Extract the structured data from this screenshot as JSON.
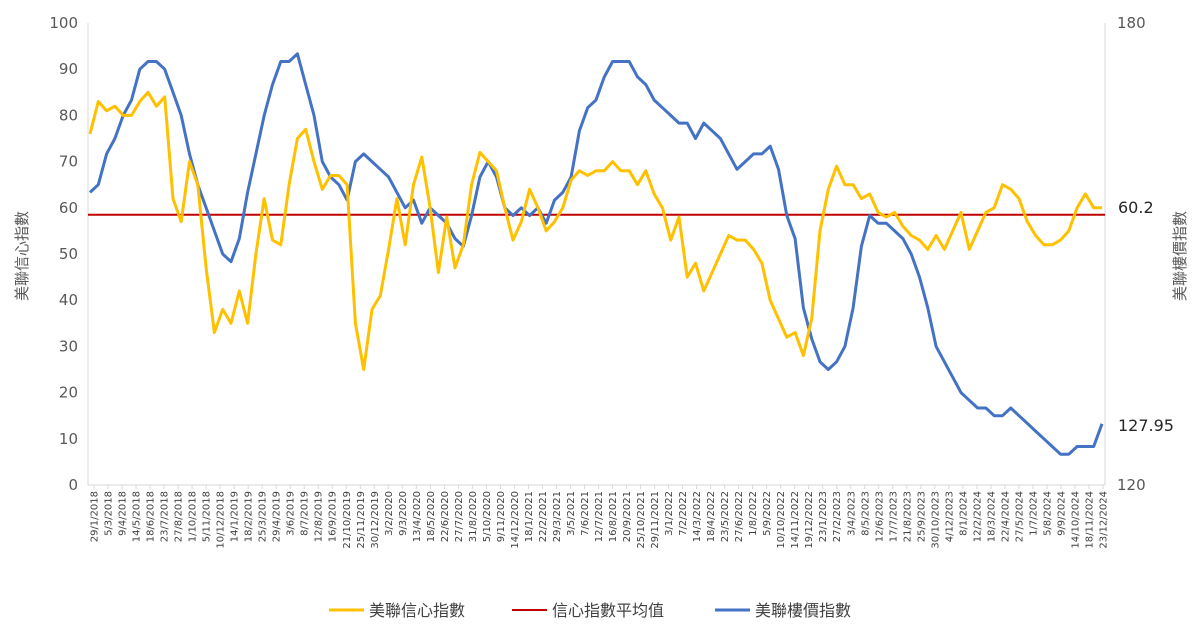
{
  "chart_data": {
    "type": "line",
    "y_left_label": "美聯信心指數",
    "y_right_label": "美聯樓價指數",
    "y_left_range": [
      0,
      100
    ],
    "y_left_ticks": [
      "0",
      "10",
      "20",
      "30",
      "40",
      "50",
      "60",
      "70",
      "80",
      "90",
      "100"
    ],
    "y_right_range": [
      120,
      180
    ],
    "y_right_ticks": [
      "120",
      "180"
    ],
    "x_tick_labels": [
      "29/1/2018",
      "5/3/2018",
      "9/4/2018",
      "14/5/2018",
      "18/6/2018",
      "23/7/2018",
      "27/8/2018",
      "1/10/2018",
      "5/11/2018",
      "10/12/2018",
      "14/1/2019",
      "18/2/2019",
      "25/3/2019",
      "29/4/2019",
      "3/6/2019",
      "8/7/2019",
      "12/8/2019",
      "16/9/2019",
      "21/10/2019",
      "25/11/2019",
      "30/12/2019",
      "3/2/2020",
      "9/3/2020",
      "13/4/2020",
      "18/5/2020",
      "22/6/2020",
      "27/7/2020",
      "31/8/2020",
      "5/10/2020",
      "9/11/2020",
      "14/12/2020",
      "18/1/2021",
      "22/2/2021",
      "29/3/2021",
      "3/5/2021",
      "7/6/2021",
      "12/7/2021",
      "16/8/2021",
      "20/9/2021",
      "25/10/2021",
      "29/11/2021",
      "3/1/2022",
      "7/2/2022",
      "14/3/2022",
      "18/4/2022",
      "23/5/2022",
      "27/6/2022",
      "1/8/2022",
      "5/9/2022",
      "10/10/2022",
      "14/11/2022",
      "19/12/2022",
      "23/1/2023",
      "27/2/2023",
      "3/4/2023",
      "8/5/2023",
      "12/6/2023",
      "17/7/2023",
      "21/8/2023",
      "25/9/2023",
      "30/10/2023",
      "4/12/2023",
      "8/1/2024",
      "12/2/2024",
      "18/3/2024",
      "22/4/2024",
      "27/5/2024",
      "1/7/2024",
      "5/8/2024",
      "9/9/2024",
      "14/10/2024",
      "18/11/2024",
      "23/12/2024"
    ],
    "average_value": 58.5,
    "series": [
      {
        "name": "美聯信心指數",
        "axis": "left",
        "color": "#FFC000",
        "values": [
          76,
          83,
          81,
          82,
          80,
          80,
          83,
          85,
          82,
          84,
          62,
          57,
          70,
          65,
          47,
          33,
          38,
          35,
          42,
          35,
          50,
          62,
          53,
          52,
          65,
          75,
          77,
          70,
          64,
          67,
          67,
          65,
          35,
          25,
          38,
          41,
          51,
          62,
          52,
          65,
          71,
          60,
          46,
          58,
          47,
          52,
          65,
          72,
          70,
          68,
          60,
          53,
          57,
          64,
          60,
          55,
          57,
          60,
          66,
          68,
          67,
          68,
          68,
          70,
          68,
          68,
          65,
          68,
          63,
          60,
          53,
          58,
          45,
          48,
          42,
          46,
          50,
          54,
          53,
          53,
          51,
          48,
          40,
          36,
          32,
          33,
          28,
          36,
          55,
          64,
          69,
          65,
          65,
          62,
          63,
          59,
          58,
          59,
          56,
          54,
          53,
          51,
          54,
          51,
          55,
          59,
          51,
          55,
          59,
          60,
          65,
          64,
          62,
          57,
          54,
          52,
          52,
          53,
          55,
          60,
          63,
          60,
          60
        ]
      },
      {
        "name": "美聯樓價指數",
        "axis": "right",
        "color": "#4472C4",
        "values": [
          158,
          159,
          163,
          165,
          168,
          170,
          174,
          175,
          175,
          174,
          171,
          168,
          163,
          159,
          156,
          153,
          150,
          149,
          152,
          158,
          163,
          168,
          172,
          175,
          175,
          176,
          172,
          168,
          162,
          160,
          159,
          157,
          162,
          163,
          162,
          161,
          160,
          158,
          156,
          157,
          154,
          156,
          155,
          154,
          152,
          151,
          155,
          160,
          162,
          160,
          156,
          155,
          156,
          155,
          156,
          154,
          157,
          158,
          160,
          166,
          169,
          170,
          173,
          175,
          175,
          175,
          173,
          172,
          170,
          169,
          168,
          167,
          167,
          165,
          167,
          166,
          165,
          163,
          161,
          162,
          163,
          163,
          164,
          161,
          155,
          152,
          143,
          139,
          136,
          135,
          136,
          138,
          143,
          151,
          155,
          154,
          154,
          153,
          152,
          150,
          147,
          143,
          138,
          136,
          134,
          132,
          131,
          130,
          130,
          129,
          129,
          130,
          129,
          128,
          127,
          126,
          125,
          124,
          124,
          125,
          125,
          125,
          127.95
        ]
      }
    ],
    "legend": [
      {
        "label": "美聯信心指數",
        "color": "#FFC000"
      },
      {
        "label": "信心指數平均值",
        "color": "#C00000"
      },
      {
        "label": "美聯樓價指數",
        "color": "#4472C4"
      }
    ],
    "end_labels": {
      "confidence": "60.2",
      "price": "127.95"
    },
    "legend_position": "bottom",
    "grid": false
  }
}
